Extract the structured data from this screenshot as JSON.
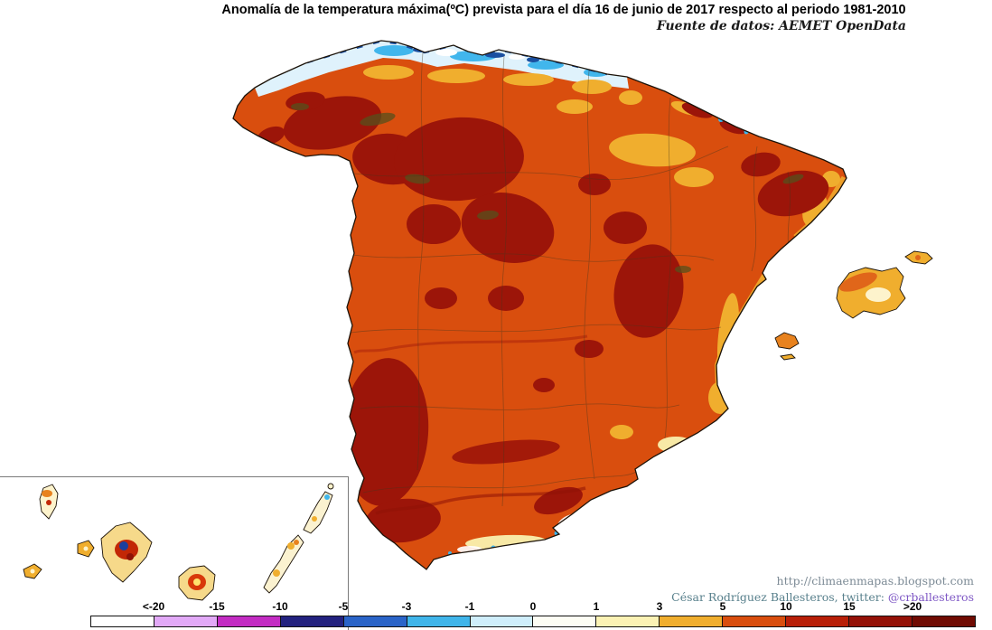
{
  "header": {
    "title": "Anomalía de la temperatura máxima(ºC) prevista para el día 16 de junio de 2017 respecto al periodo 1981-2010",
    "source": "Fuente de datos: AEMET OpenData"
  },
  "footer": {
    "url": "http://climaenmapas.blogspot.com",
    "credit_name": "César Rodríguez Ballesteros, twitter: ",
    "credit_handle": "@crballesteros"
  },
  "colorbar": {
    "labels": [
      "<-20",
      "-15",
      "-10",
      "-5",
      "-3",
      "-1",
      "0",
      "1",
      "3",
      "5",
      "10",
      "15",
      ">20"
    ],
    "segments": [
      "#ffffff",
      "#e2a9f7",
      "#c32cc3",
      "#23227f",
      "#2a64c8",
      "#3fb5ea",
      "#cfeefb",
      "#fdfdf4",
      "#fbf2b4",
      "#f0ae2e",
      "#d94e0e",
      "#b81f08",
      "#941107",
      "#700b03"
    ],
    "unit": "ºC"
  },
  "map_colors": {
    "base_anomaly": "#d94e0e",
    "strong_anomaly": "#9c1509",
    "mild_anomaly": "#f0ae2e",
    "negative_anomaly": "#3fb5ea"
  }
}
